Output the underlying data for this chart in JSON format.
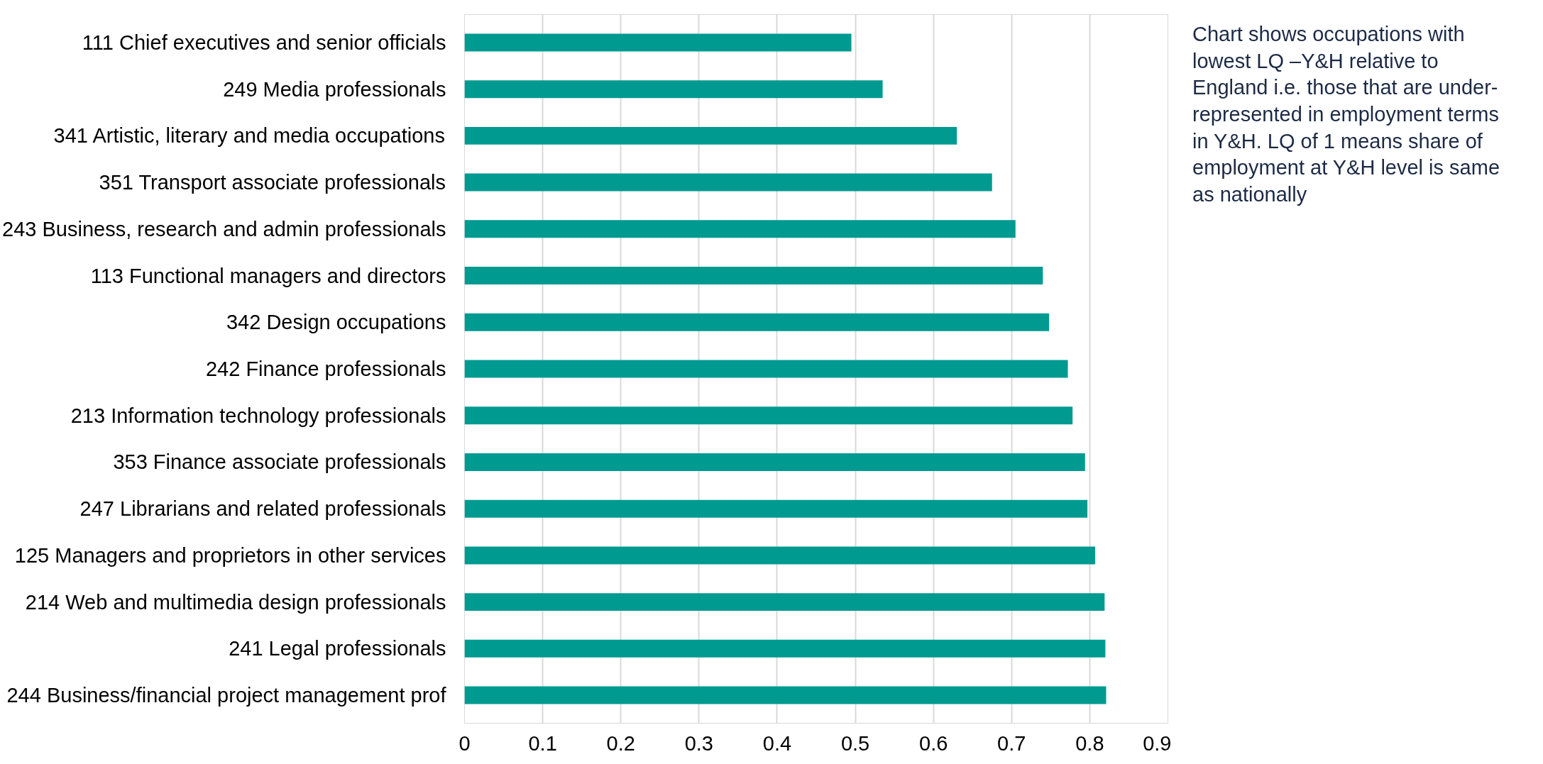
{
  "chart_data": {
    "type": "bar",
    "orientation": "horizontal",
    "categories": [
      "111 Chief executives and senior officials",
      "249 Media professionals",
      "341 Artistic, literary and media occupations",
      "351 Transport associate professionals",
      "243 Business, research and admin professionals",
      "113 Functional managers and directors",
      "342 Design occupations",
      "242 Finance professionals",
      "213 Information technology professionals",
      "353 Finance associate professionals",
      "247 Librarians and related professionals",
      "125 Managers and proprietors in other services",
      "214 Web and multimedia design professionals",
      "241 Legal professionals",
      "244 Business/financial project management prof"
    ],
    "values": [
      0.495,
      0.535,
      0.63,
      0.675,
      0.705,
      0.74,
      0.748,
      0.772,
      0.778,
      0.794,
      0.797,
      0.807,
      0.819,
      0.82,
      0.821
    ],
    "color": "#009a91",
    "xlim": [
      0,
      0.9
    ],
    "xticks": [
      0,
      0.1,
      0.2,
      0.3,
      0.4,
      0.5,
      0.6,
      0.7,
      0.8,
      0.9
    ],
    "grid": "x",
    "annotations": [
      "Chart shows occupations with lowest LQ –Y&H relative to England i.e. those that are under-represented in employment terms in Y&H. LQ of 1 means share of employment at Y&H level is same as nationally"
    ]
  }
}
